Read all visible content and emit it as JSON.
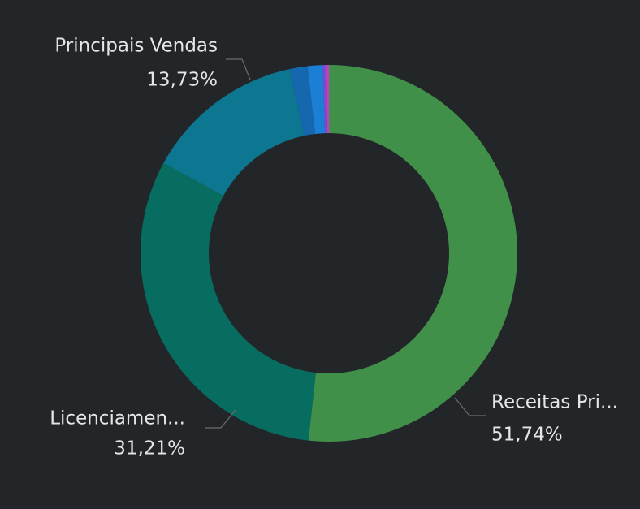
{
  "chart_data": {
    "type": "pie",
    "categories": [
      "Receitas Pri...",
      "Licenciamen...",
      "Principais Vendas",
      null,
      null,
      null,
      null
    ],
    "values": [
      51.74,
      31.21,
      13.73,
      1.5,
      1.3,
      0.3,
      0.22
    ],
    "value_labels": [
      "51,74%",
      "31,21%",
      "13,73%",
      null,
      null,
      null,
      null
    ],
    "colors": [
      "#41904a",
      "#086d61",
      "#0d7791",
      "#1567ae",
      "#1c7fd6",
      "#7b4bd2",
      "#c23fc4"
    ]
  }
}
